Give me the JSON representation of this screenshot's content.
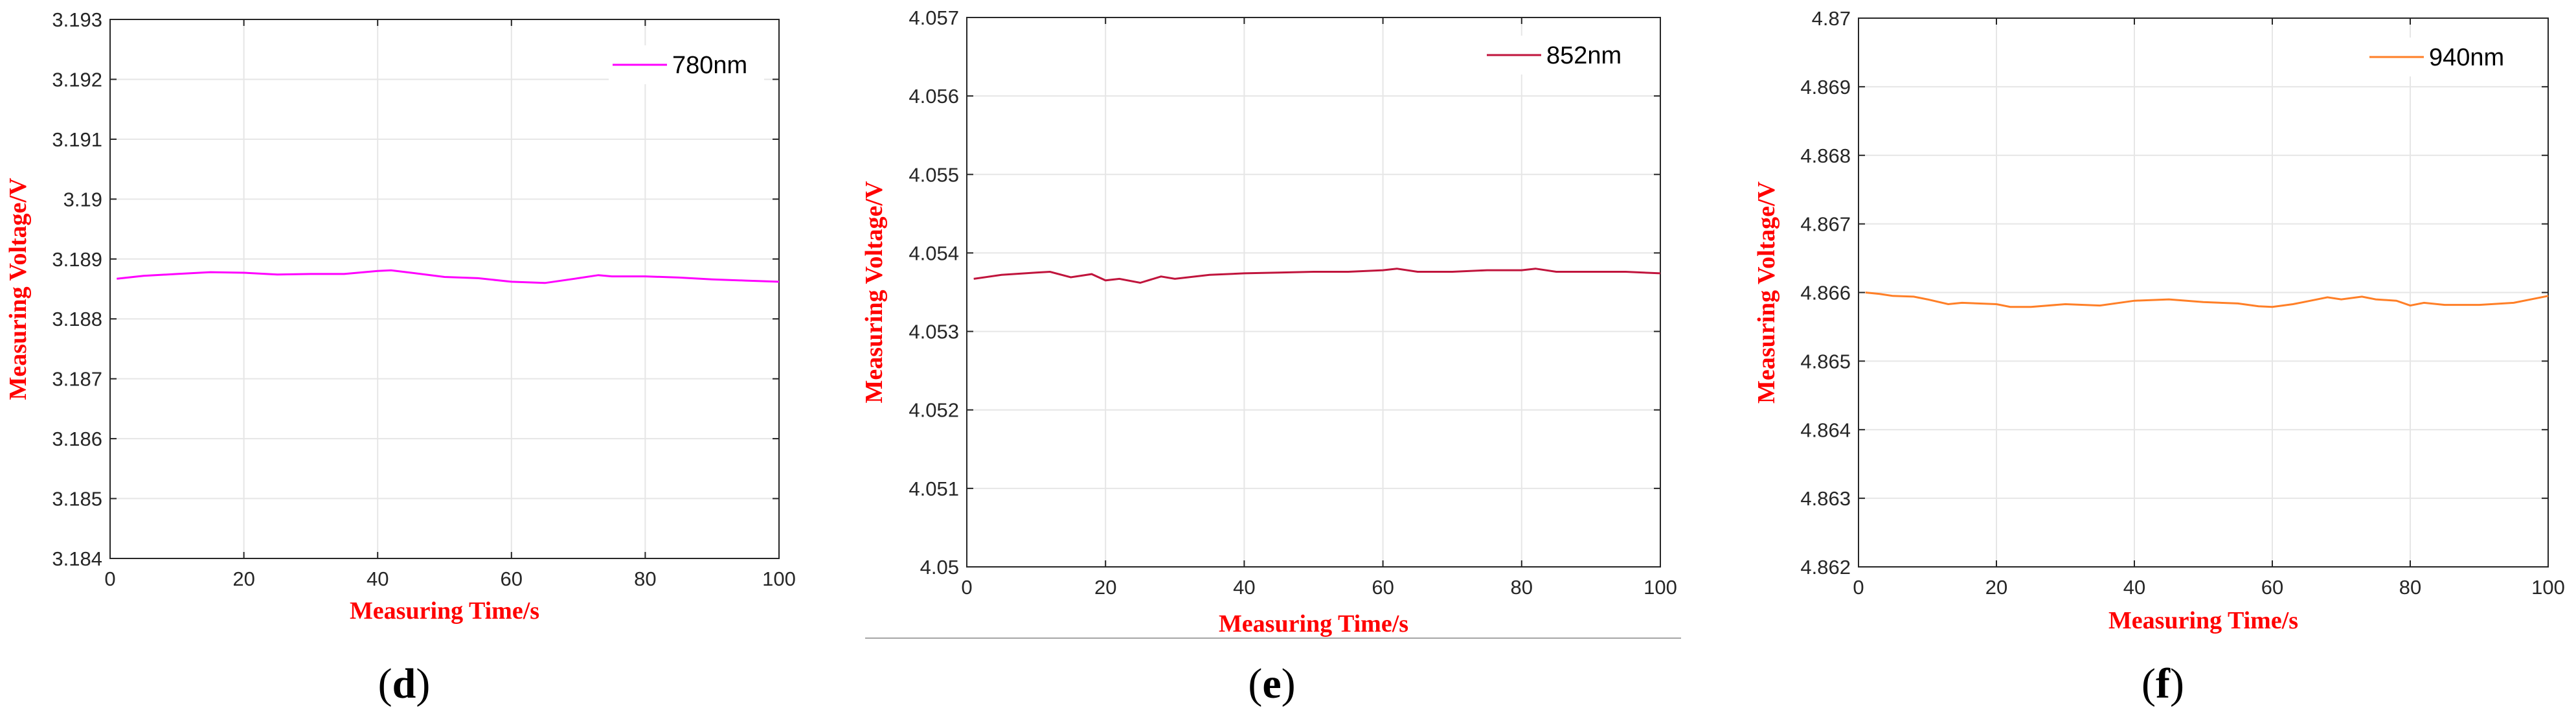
{
  "chart_data": [
    {
      "type": "line",
      "panel_label": "d",
      "xlabel": "Measuring Time/s",
      "ylabel": "Measuring Voltage/V",
      "xlim": [
        0,
        100
      ],
      "ylim": [
        3.184,
        3.193
      ],
      "xticks": [
        "0",
        "20",
        "40",
        "60",
        "80",
        "100"
      ],
      "yticks": [
        "3.184",
        "3.185",
        "3.186",
        "3.187",
        "3.188",
        "3.189",
        "3.19",
        "3.191",
        "3.192",
        "3.193"
      ],
      "grid": true,
      "legend_position": "top-right",
      "series": [
        {
          "name": "780nm",
          "color": "#ff00ff",
          "x": [
            1,
            5,
            10,
            15,
            20,
            25,
            30,
            35,
            40,
            42,
            45,
            50,
            55,
            60,
            65,
            70,
            73,
            75,
            80,
            85,
            90,
            95,
            100
          ],
          "y": [
            3.18867,
            3.18872,
            3.18875,
            3.18878,
            3.18877,
            3.18874,
            3.18875,
            3.18875,
            3.1888,
            3.18881,
            3.18877,
            3.1887,
            3.18868,
            3.18862,
            3.1886,
            3.18868,
            3.18873,
            3.18871,
            3.18871,
            3.18869,
            3.18866,
            3.18864,
            3.18862
          ]
        }
      ]
    },
    {
      "type": "line",
      "panel_label": "e",
      "xlabel": "Measuring Time/s",
      "ylabel": "Measuring Voltage/V",
      "xlim": [
        0,
        100
      ],
      "ylim": [
        4.05,
        4.057
      ],
      "xticks": [
        "0",
        "20",
        "40",
        "60",
        "80",
        "100"
      ],
      "yticks": [
        "4.05",
        "4.051",
        "4.052",
        "4.053",
        "4.054",
        "4.055",
        "4.056",
        "4.057"
      ],
      "grid": true,
      "legend_position": "top-right",
      "series": [
        {
          "name": "852nm",
          "color": "#c0143c",
          "x": [
            1,
            5,
            10,
            12,
            15,
            18,
            20,
            22,
            25,
            28,
            30,
            35,
            40,
            45,
            50,
            55,
            60,
            62,
            65,
            70,
            75,
            80,
            82,
            85,
            90,
            95,
            100
          ],
          "y": [
            4.05367,
            4.05372,
            4.05375,
            4.05376,
            4.05369,
            4.05373,
            4.05365,
            4.05367,
            4.05362,
            4.0537,
            4.05367,
            4.05372,
            4.05374,
            4.05375,
            4.05376,
            4.05376,
            4.05378,
            4.0538,
            4.05376,
            4.05376,
            4.05378,
            4.05378,
            4.0538,
            4.05376,
            4.05376,
            4.05376,
            4.05374
          ]
        }
      ]
    },
    {
      "type": "line",
      "panel_label": "f",
      "xlabel": "Measuring Time/s",
      "ylabel": "Measuring Voltage/V",
      "xlim": [
        0,
        100
      ],
      "ylim": [
        4.862,
        4.87
      ],
      "xticks": [
        "0",
        "20",
        "40",
        "60",
        "80",
        "100"
      ],
      "yticks": [
        "4.862",
        "4.863",
        "4.864",
        "4.865",
        "4.866",
        "4.867",
        "4.868",
        "4.869",
        "4.87"
      ],
      "grid": true,
      "legend_position": "top-right",
      "series": [
        {
          "name": "940nm",
          "color": "#ff7f27",
          "x": [
            1,
            3,
            5,
            8,
            10,
            13,
            15,
            20,
            22,
            25,
            30,
            35,
            40,
            45,
            50,
            55,
            58,
            60,
            63,
            65,
            68,
            70,
            73,
            75,
            78,
            80,
            82,
            85,
            90,
            95,
            100
          ],
          "y": [
            4.866,
            4.86598,
            4.86595,
            4.86594,
            4.8659,
            4.86583,
            4.86585,
            4.86583,
            4.86579,
            4.86579,
            4.86583,
            4.86581,
            4.86588,
            4.8659,
            4.86586,
            4.86584,
            4.8658,
            4.86579,
            4.86583,
            4.86587,
            4.86593,
            4.8659,
            4.86594,
            4.8659,
            4.86588,
            4.86581,
            4.86585,
            4.86582,
            4.86582,
            4.86585,
            4.86595
          ]
        }
      ]
    }
  ],
  "captions": [
    {
      "open": "(",
      "letter": "d",
      "close": ")"
    },
    {
      "open": "(",
      "letter": "e",
      "close": ")"
    },
    {
      "open": "(",
      "letter": "f",
      "close": ")"
    }
  ]
}
